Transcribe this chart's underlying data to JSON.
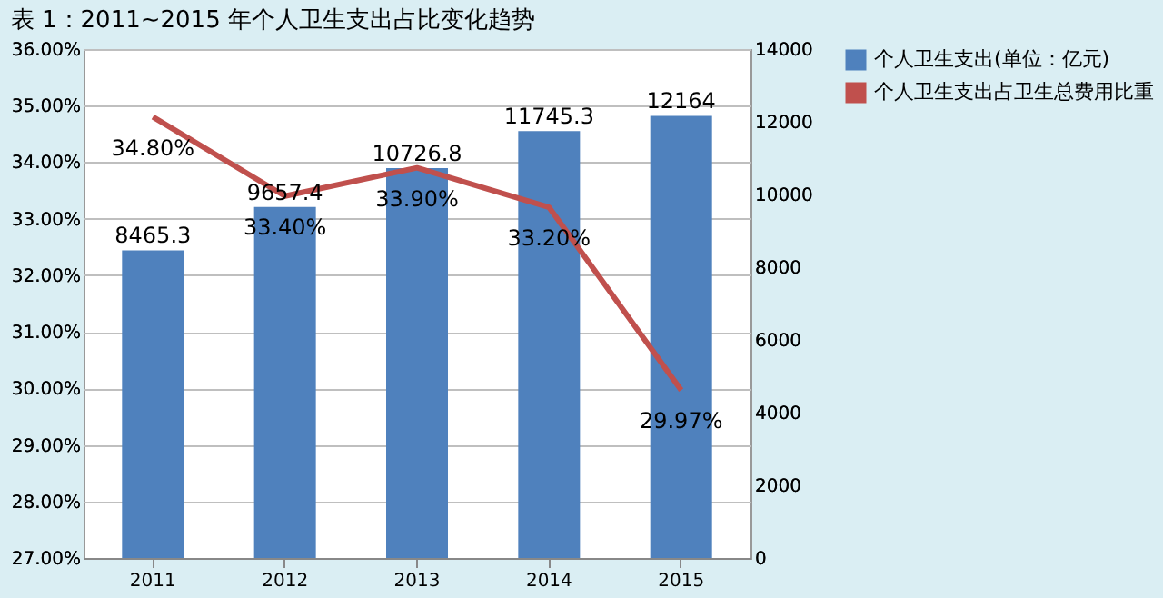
{
  "chart_data": {
    "type": "bar",
    "title": "表 1：2011~2015 年个人卫生支出占比变化趋势",
    "categories": [
      "2011",
      "2012",
      "2013",
      "2014",
      "2015"
    ],
    "series": [
      {
        "name": "个人卫生支出(单位：亿元)",
        "axis": "y2",
        "color": "#4f81bd",
        "values": [
          8465.3,
          9657.4,
          10726.8,
          11745.3,
          12164
        ],
        "value_labels": [
          "8465.3",
          "9657.4",
          "10726.8",
          "11745.3",
          "12164"
        ]
      },
      {
        "name": "个人卫生支出占卫生总费用比重",
        "type": "line",
        "color": "#c0504d",
        "values": [
          34.8,
          33.4,
          33.9,
          33.2,
          29.97
        ],
        "value_labels": [
          "34.80%",
          "33.40%",
          "33.90%",
          "33.20%",
          "29.97%"
        ]
      }
    ],
    "ylim": [
      27,
      36
    ],
    "yticks": [
      {
        "value": 27,
        "label": "27.00%"
      },
      {
        "value": 28,
        "label": "28.00%"
      },
      {
        "value": 29,
        "label": "29.00%"
      },
      {
        "value": 30,
        "label": "30.00%"
      },
      {
        "value": 31,
        "label": "31.00%"
      },
      {
        "value": 32,
        "label": "32.00%"
      },
      {
        "value": 33,
        "label": "33.00%"
      },
      {
        "value": 34,
        "label": "34.00%"
      },
      {
        "value": 35,
        "label": "35.00%"
      },
      {
        "value": 36,
        "label": "36.00%"
      }
    ],
    "y2lim": [
      0,
      14000
    ],
    "y2ticks": [
      0,
      2000,
      4000,
      6000,
      8000,
      10000,
      12000,
      14000
    ],
    "grid": "y",
    "legend": "right",
    "marker": "none",
    "line_style": "solid"
  }
}
